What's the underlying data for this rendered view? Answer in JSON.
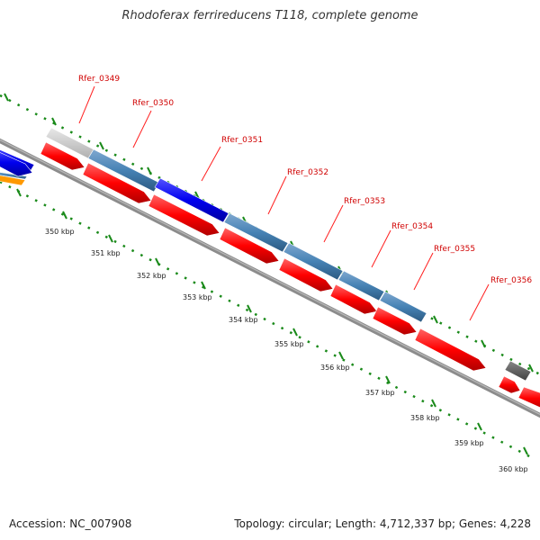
{
  "title": "Rhodoferax ferrireducens T118, complete genome",
  "footer": {
    "accession": "Accession: NC_007908",
    "topology": "Topology: circular; Length: 4,712,337 bp; Genes: 4,228"
  },
  "kbp_labels": [
    "350 kbp",
    "351 kbp",
    "352 kbp",
    "353 kbp",
    "354 kbp",
    "355 kbp",
    "356 kbp",
    "357 kbp",
    "358 kbp",
    "359 kbp",
    "360 kbp"
  ],
  "gene_labels": [
    "Rfer_0349",
    "Rfer_0350",
    "Rfer_0351",
    "Rfer_0352",
    "Rfer_0353",
    "Rfer_0354",
    "Rfer_0355",
    "Rfer_0356"
  ],
  "colors": {
    "cds": "#ff0000",
    "feature_blue": "#0000ee",
    "feature_steel": "#4682b4",
    "feature_light": "#c8c8c8",
    "feature_dark": "#606060",
    "feature_orange": "#ff9900",
    "backbone": "#8c8c8c",
    "ticks": "#1a8a1a",
    "label": "#d00000"
  }
}
